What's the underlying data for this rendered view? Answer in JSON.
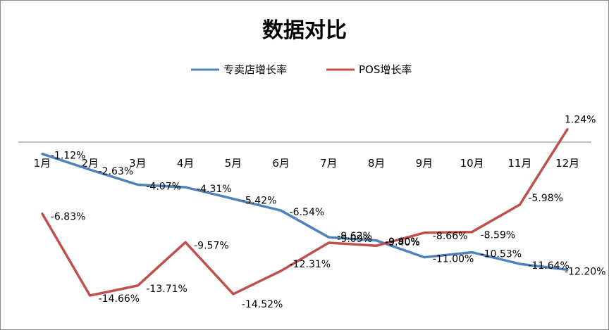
{
  "chart_data": {
    "type": "line",
    "title": "数据对比",
    "categories": [
      "1月",
      "2月",
      "3月",
      "4月",
      "5月",
      "6月",
      "7月",
      "8月",
      "9月",
      "10月",
      "11月",
      "12月"
    ],
    "series": [
      {
        "name": "专卖店增长率",
        "color": "#4f81bd",
        "values": [
          -1.12,
          -2.63,
          -4.07,
          -4.31,
          -5.42,
          -6.54,
          -9.09,
          -9.4,
          -11.0,
          -10.53,
          -11.64,
          -12.2
        ],
        "labels": [
          "-1.12%",
          "-2.63%",
          "-4.07%",
          "-4.31%",
          "-5.42%",
          "-6.54%",
          "-9.09%",
          "-9.40%",
          "-11.00%",
          "-10.53%",
          "-11.64%",
          "-12.20%"
        ]
      },
      {
        "name": "POS增长率",
        "color": "#c0504d",
        "values": [
          -6.83,
          -14.66,
          -13.71,
          -9.57,
          -14.52,
          -12.31,
          -9.62,
          -9.9,
          -8.66,
          -8.59,
          -5.98,
          1.24
        ],
        "labels": [
          "-6.83%",
          "-14.66%",
          "-13.71%",
          "-9.57%",
          "-14.52%",
          "-12.31%",
          "-9.62%",
          "-9.90%",
          "-8.66%",
          "-8.59%",
          "-5.98%",
          "1.24%"
        ]
      }
    ],
    "ylim": [
      -16,
      2
    ],
    "grid": false,
    "legend_position": "top",
    "xlabel": "",
    "ylabel": ""
  }
}
